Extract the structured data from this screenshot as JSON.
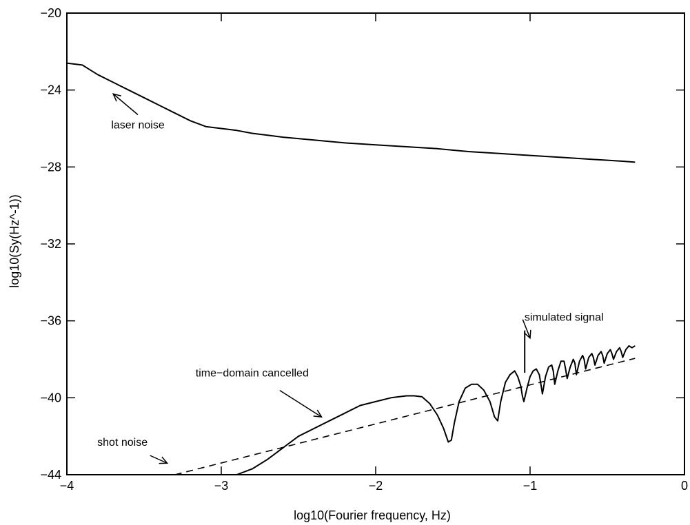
{
  "chart_data": {
    "type": "line",
    "title": "",
    "xlabel": "log10(Fourier frequency, Hz)",
    "ylabel": "log10(Sy(Hz^-1))",
    "xlim": [
      -4,
      0
    ],
    "ylim": [
      -44,
      -20
    ],
    "x_ticks": [
      -4,
      -3,
      -2,
      -1,
      0
    ],
    "x_tick_labels": [
      "−4",
      "−3",
      "−2",
      "−1",
      "0"
    ],
    "y_ticks": [
      -20,
      -24,
      -28,
      -32,
      -36,
      -40,
      -44
    ],
    "y_tick_labels": [
      "−20",
      "−24",
      "−28",
      "−32",
      "−36",
      "−40",
      "−44"
    ],
    "grid": false,
    "series": [
      {
        "style": "solid",
        "x": [
          -4.0,
          -3.9,
          -3.8,
          -3.7,
          -3.6,
          -3.5,
          -3.4,
          -3.3,
          -3.2,
          -3.1,
          -3.0,
          -2.9,
          -2.8,
          -2.7,
          -2.6,
          -2.4,
          -2.2,
          -2.0,
          -1.8,
          -1.6,
          -1.4,
          -1.2,
          -1.0,
          -0.8,
          -0.6,
          -0.4,
          -0.32
        ],
        "y": [
          -22.6,
          -22.7,
          -23.2,
          -23.6,
          -24.0,
          -24.4,
          -24.8,
          -25.2,
          -25.6,
          -25.9,
          -26.0,
          -26.1,
          -26.25,
          -26.35,
          -26.45,
          -26.6,
          -26.75,
          -26.85,
          -26.95,
          -27.05,
          -27.2,
          -27.3,
          -27.4,
          -27.5,
          -27.6,
          -27.7,
          -27.75
        ]
      },
      {
        "style": "solid",
        "x": [
          -2.9,
          -2.8,
          -2.7,
          -2.6,
          -2.5,
          -2.4,
          -2.3,
          -2.2,
          -2.1,
          -2.0,
          -1.9,
          -1.8,
          -1.75,
          -1.7,
          -1.65,
          -1.6,
          -1.56,
          -1.53,
          -1.51,
          -1.49,
          -1.46,
          -1.42,
          -1.38,
          -1.34,
          -1.3,
          -1.26,
          -1.23,
          -1.21,
          -1.19,
          -1.16,
          -1.13,
          -1.1,
          -1.08,
          -1.06,
          -1.05,
          -1.04,
          -1.02,
          -1.0,
          -0.98,
          -0.96,
          -0.94,
          -0.93,
          -0.92,
          -0.9,
          -0.88,
          -0.86,
          -0.85,
          -0.84,
          -0.82,
          -0.8,
          -0.78,
          -0.77,
          -0.76,
          -0.74,
          -0.72,
          -0.71,
          -0.7,
          -0.68,
          -0.66,
          -0.65,
          -0.64,
          -0.62,
          -0.6,
          -0.59,
          -0.58,
          -0.56,
          -0.54,
          -0.53,
          -0.52,
          -0.5,
          -0.48,
          -0.47,
          -0.46,
          -0.44,
          -0.42,
          -0.41,
          -0.4,
          -0.38,
          -0.36,
          -0.34,
          -0.32
        ],
        "y": [
          -44.0,
          -43.7,
          -43.2,
          -42.6,
          -42.0,
          -41.6,
          -41.2,
          -40.8,
          -40.4,
          -40.2,
          -40.0,
          -39.9,
          -39.9,
          -39.95,
          -40.3,
          -40.9,
          -41.6,
          -42.3,
          -42.2,
          -41.3,
          -40.2,
          -39.5,
          -39.3,
          -39.3,
          -39.6,
          -40.2,
          -41.0,
          -41.2,
          -40.2,
          -39.2,
          -38.8,
          -38.6,
          -38.9,
          -39.4,
          -39.9,
          -40.2,
          -39.5,
          -38.9,
          -38.6,
          -38.5,
          -38.8,
          -39.3,
          -39.8,
          -38.9,
          -38.4,
          -38.3,
          -38.6,
          -39.3,
          -38.6,
          -38.1,
          -38.1,
          -38.5,
          -39.0,
          -38.4,
          -38.0,
          -38.2,
          -38.8,
          -38.1,
          -37.8,
          -38.0,
          -38.5,
          -37.9,
          -37.7,
          -37.9,
          -38.3,
          -37.8,
          -37.6,
          -37.8,
          -38.2,
          -37.7,
          -37.5,
          -37.7,
          -38.0,
          -37.6,
          -37.4,
          -37.6,
          -37.9,
          -37.5,
          -37.3,
          -37.4,
          -37.3
        ]
      },
      {
        "style": "dashed",
        "x": [
          -3.3,
          -0.32
        ],
        "y": [
          -44.0,
          -37.95
        ]
      },
      {
        "style": "solid",
        "x": [
          -1.035,
          -1.035
        ],
        "y": [
          -38.7,
          -36.5
        ]
      }
    ],
    "annotations": [
      {
        "text": "laser noise",
        "x": -3.54,
        "y": -26.0,
        "arrow_to": [
          -3.7,
          -24.2
        ]
      },
      {
        "text": "simulated signal",
        "x": -0.78,
        "y": -36.0,
        "arrow_to": [
          -1.0,
          -36.9
        ]
      },
      {
        "text": "time−domain cancelled",
        "x": -2.8,
        "y": -38.9,
        "arrow_to": [
          -2.35,
          -41.0
        ]
      },
      {
        "text": "shot noise",
        "x": -3.64,
        "y": -42.5,
        "arrow_to": [
          -3.35,
          -43.4
        ]
      }
    ]
  }
}
